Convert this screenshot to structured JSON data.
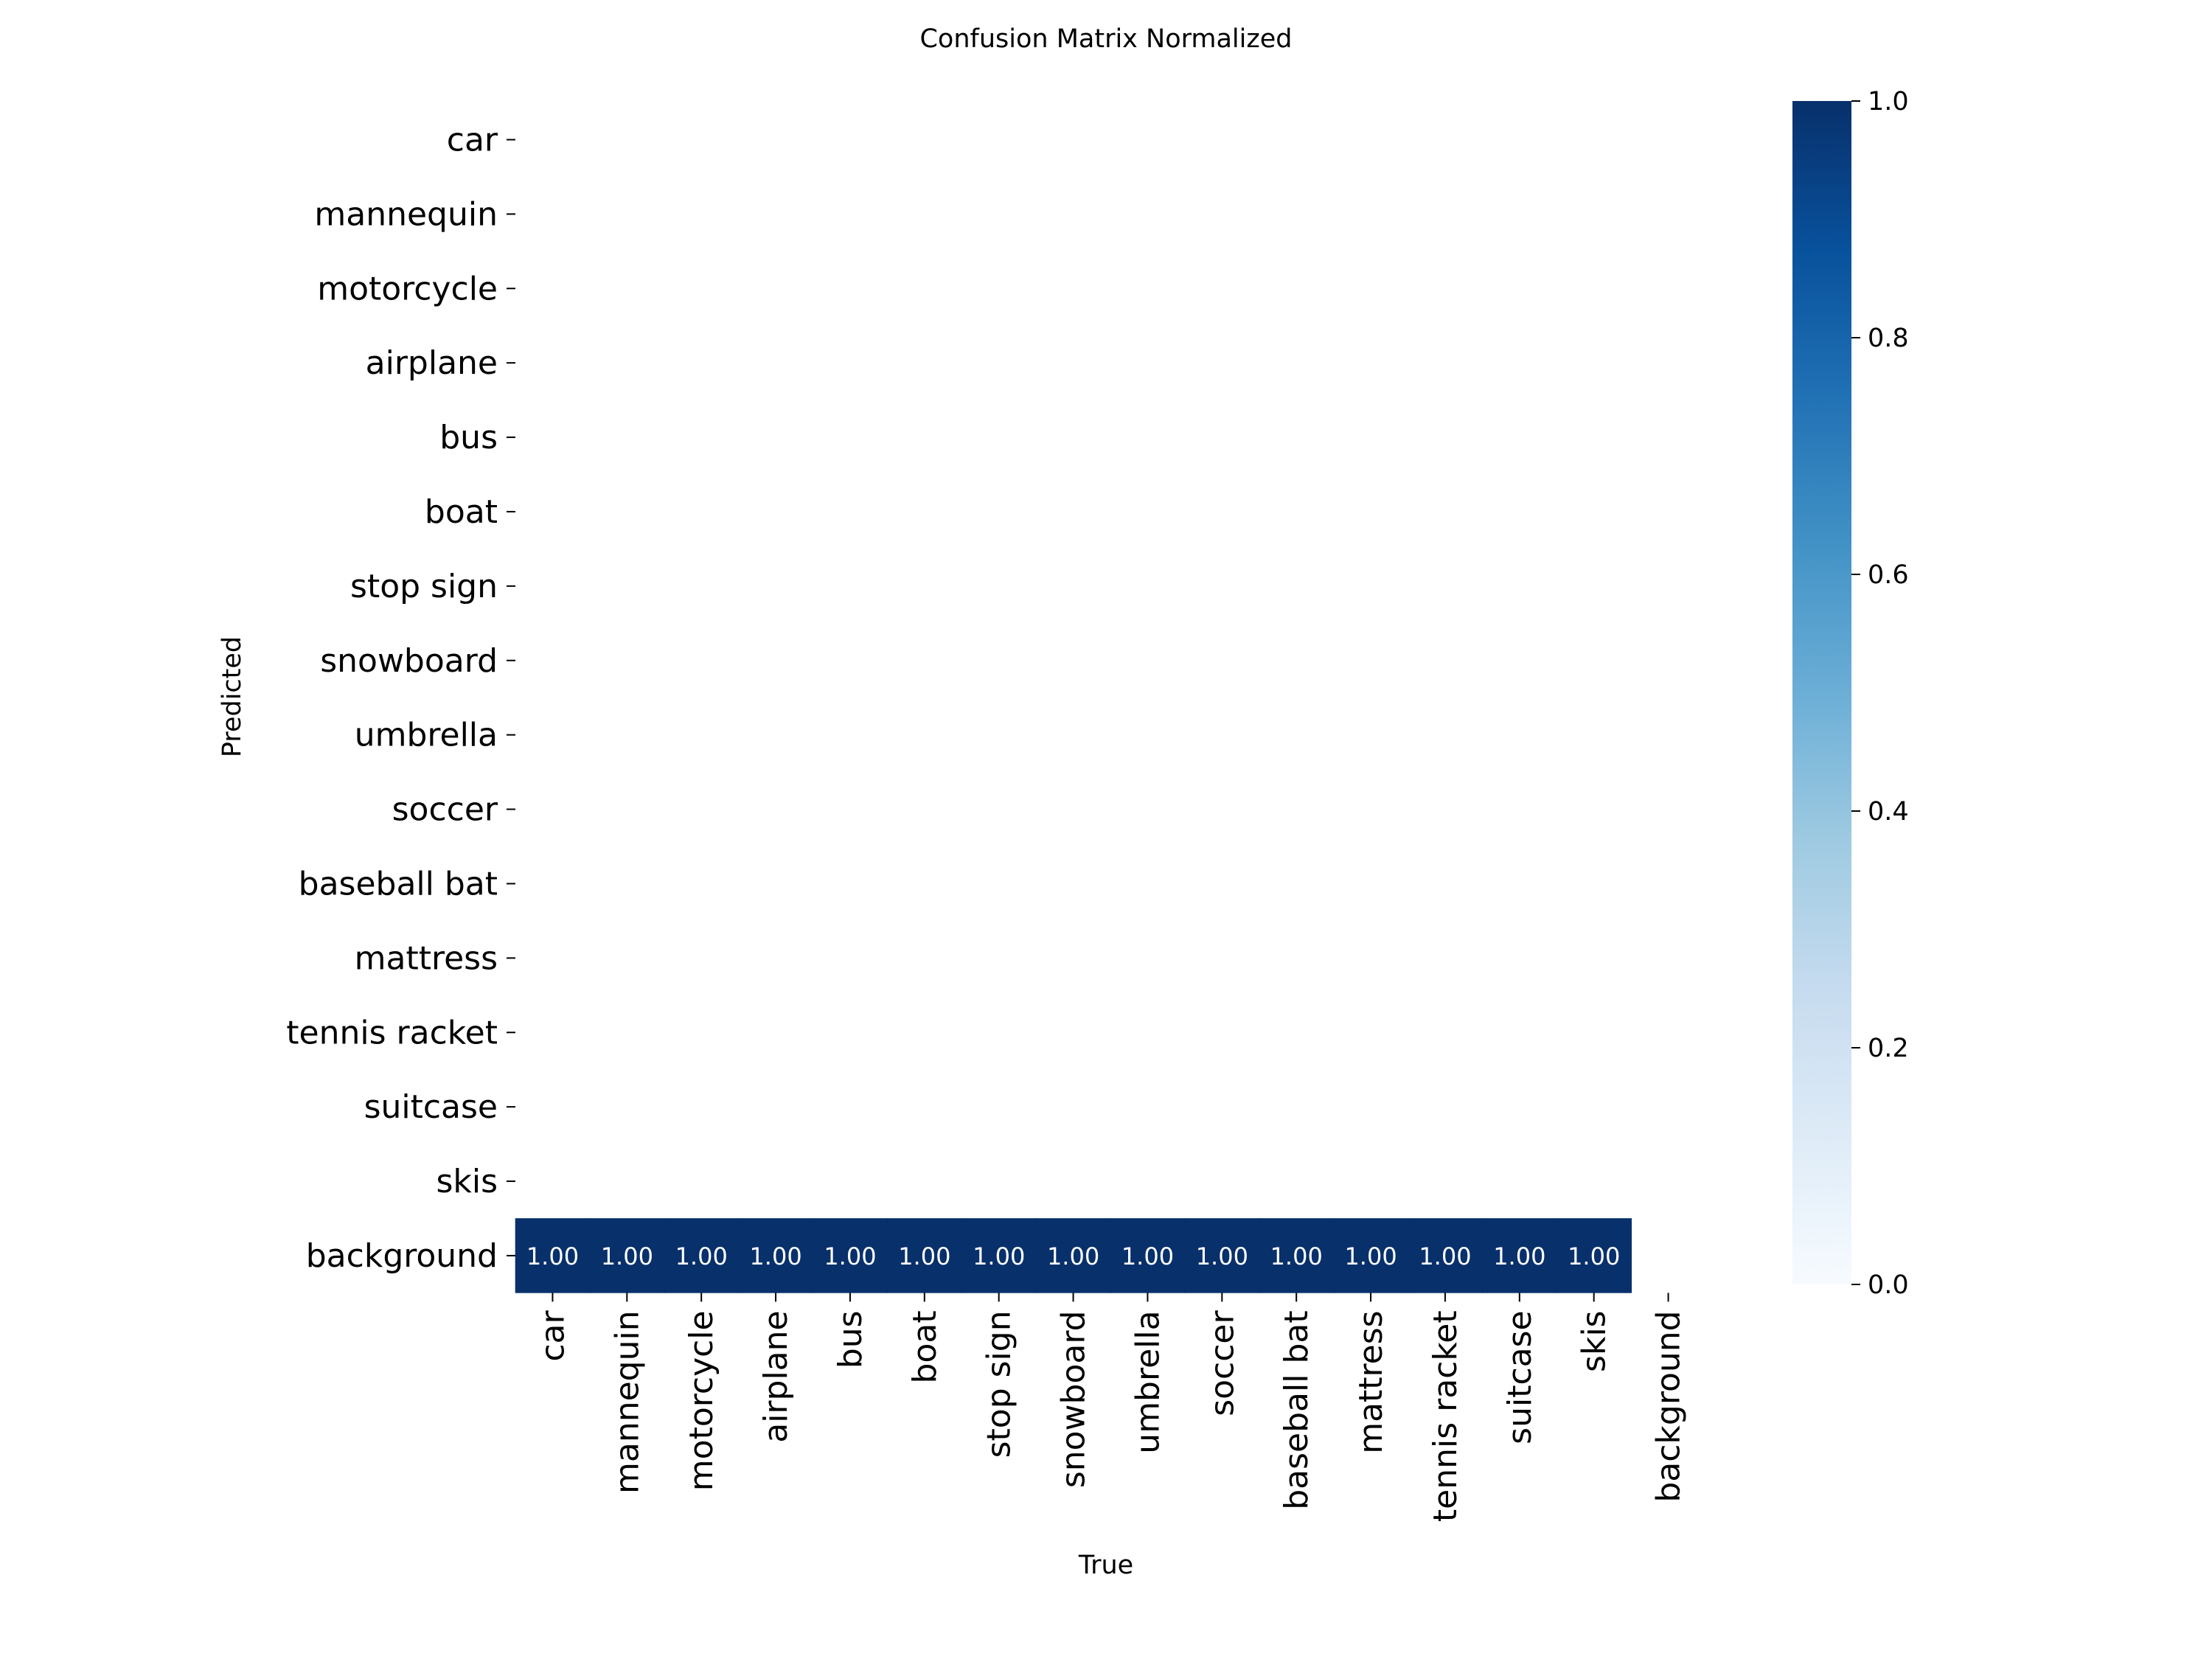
{
  "chart_data": {
    "type": "heatmap",
    "title": "Confusion Matrix Normalized",
    "xlabel": "True",
    "ylabel": "Predicted",
    "x_categories": [
      "car",
      "mannequin",
      "motorcycle",
      "airplane",
      "bus",
      "boat",
      "stop sign",
      "snowboard",
      "umbrella",
      "soccer",
      "baseball bat",
      "mattress",
      "tennis racket",
      "suitcase",
      "skis",
      "background"
    ],
    "y_categories": [
      "car",
      "mannequin",
      "motorcycle",
      "airplane",
      "bus",
      "boat",
      "stop sign",
      "snowboard",
      "umbrella",
      "soccer",
      "baseball bat",
      "mattress",
      "tennis racket",
      "suitcase",
      "skis",
      "background"
    ],
    "cells": [
      {
        "x": "car",
        "y": "background",
        "value": 1.0,
        "label": "1.00"
      },
      {
        "x": "mannequin",
        "y": "background",
        "value": 1.0,
        "label": "1.00"
      },
      {
        "x": "motorcycle",
        "y": "background",
        "value": 1.0,
        "label": "1.00"
      },
      {
        "x": "airplane",
        "y": "background",
        "value": 1.0,
        "label": "1.00"
      },
      {
        "x": "bus",
        "y": "background",
        "value": 1.0,
        "label": "1.00"
      },
      {
        "x": "boat",
        "y": "background",
        "value": 1.0,
        "label": "1.00"
      },
      {
        "x": "stop sign",
        "y": "background",
        "value": 1.0,
        "label": "1.00"
      },
      {
        "x": "snowboard",
        "y": "background",
        "value": 1.0,
        "label": "1.00"
      },
      {
        "x": "umbrella",
        "y": "background",
        "value": 1.0,
        "label": "1.00"
      },
      {
        "x": "soccer",
        "y": "background",
        "value": 1.0,
        "label": "1.00"
      },
      {
        "x": "baseball bat",
        "y": "background",
        "value": 1.0,
        "label": "1.00"
      },
      {
        "x": "mattress",
        "y": "background",
        "value": 1.0,
        "label": "1.00"
      },
      {
        "x": "tennis racket",
        "y": "background",
        "value": 1.0,
        "label": "1.00"
      },
      {
        "x": "suitcase",
        "y": "background",
        "value": 1.0,
        "label": "1.00"
      },
      {
        "x": "skis",
        "y": "background",
        "value": 1.0,
        "label": "1.00"
      }
    ],
    "colorbar": {
      "range": [
        0.0,
        1.0
      ],
      "ticks": [
        "0.0",
        "0.2",
        "0.4",
        "0.6",
        "0.8",
        "1.0"
      ],
      "colormap": "Blues",
      "colors": [
        "#f7fbff",
        "#deebf7",
        "#c6dbef",
        "#9ecae1",
        "#6baed6",
        "#4292c6",
        "#2171b5",
        "#08519c",
        "#08306b"
      ]
    },
    "empty_cells": "blank (values below threshold not drawn)",
    "grid": false
  }
}
